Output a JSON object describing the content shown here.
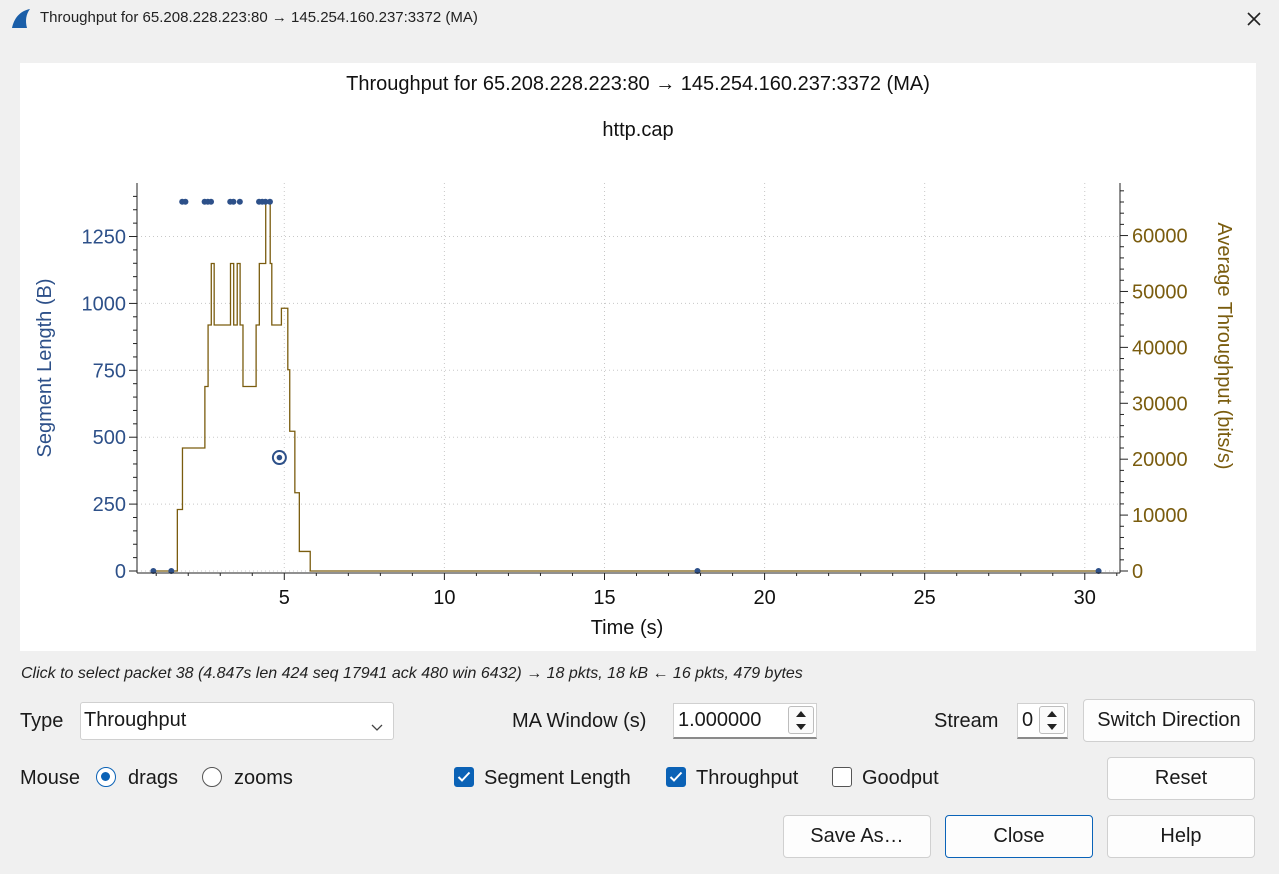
{
  "window": {
    "title": "Throughput for 65.208.228.223:80 → 145.254.160.237:3372 (MA)"
  },
  "graph": {
    "title": "Throughput for 65.208.228.223:80 → 145.254.160.237:3372 (MA)",
    "subtitle": "http.cap",
    "xlabel": "Time (s)",
    "ylabel_left": "Segment Length (B)",
    "ylabel_right": "Average Throughput (bits/s)",
    "x_ticks": [
      "5",
      "10",
      "15",
      "20",
      "25",
      "30"
    ],
    "y_left_ticks": [
      "0",
      "250",
      "500",
      "750",
      "1000",
      "1250"
    ],
    "y_right_ticks": [
      "0",
      "10000",
      "20000",
      "30000",
      "40000",
      "50000",
      "60000"
    ]
  },
  "chart_data": {
    "type": "line",
    "x_range": [
      0.4,
      31.1
    ],
    "y_left_range": [
      0,
      1450
    ],
    "y_right_range": [
      0,
      69400
    ],
    "grid": true,
    "series": [
      {
        "name": "Segment Length",
        "kind": "scatter",
        "axis": "left",
        "color": "#2d5089",
        "x": [
          0.911,
          1.472,
          1.812,
          1.912,
          2.512,
          2.612,
          2.712,
          3.312,
          3.412,
          3.612,
          4.212,
          4.312,
          4.412,
          4.552,
          17.904,
          30.43
        ],
        "y": [
          0,
          0,
          1380,
          1380,
          1380,
          1380,
          1380,
          1380,
          1380,
          1380,
          1380,
          1380,
          1380,
          1380,
          0,
          0
        ]
      },
      {
        "name": "Selected packet",
        "kind": "marker",
        "axis": "left",
        "color": "#2d5089",
        "x": [
          4.847
        ],
        "y": [
          424
        ]
      },
      {
        "name": "Throughput",
        "kind": "step",
        "axis": "right",
        "color": "#7a5c0e",
        "x": [
          0.911,
          1.65,
          1.66,
          1.81,
          1.82,
          1.91,
          1.92,
          2.51,
          2.52,
          2.61,
          2.62,
          2.71,
          2.72,
          2.8,
          2.81,
          2.9,
          2.91,
          3.31,
          3.32,
          3.41,
          3.42,
          3.52,
          3.53,
          3.61,
          3.62,
          3.7,
          3.71,
          3.9,
          3.91,
          4.11,
          4.12,
          4.21,
          4.22,
          4.31,
          4.32,
          4.41,
          4.42,
          4.55,
          4.56,
          4.6,
          4.61,
          4.9,
          4.91,
          5.1,
          5.11,
          5.16,
          5.17,
          5.32,
          5.33,
          5.46,
          5.47,
          5.56,
          5.57,
          5.8,
          5.81,
          30.43
        ],
        "y": [
          0,
          0,
          11000,
          11000,
          22000,
          22000,
          22000,
          22000,
          33000,
          33000,
          44000,
          44000,
          55000,
          55000,
          44000,
          44000,
          44000,
          44000,
          55000,
          55000,
          44000,
          44000,
          55000,
          55000,
          44000,
          44000,
          33000,
          33000,
          33000,
          33000,
          44000,
          44000,
          55000,
          55000,
          55000,
          55000,
          66000,
          66000,
          55000,
          55000,
          44000,
          44000,
          47000,
          47000,
          36000,
          36000,
          25000,
          25000,
          14000,
          14000,
          3500,
          3500,
          3500,
          3500,
          0,
          0
        ]
      }
    ]
  },
  "status": {
    "hint": "Click to select packet 38 (4.847s len 424 seq 17941 ack 480 win 6432) → 18 pkts, 18 kB ← 16 pkts, 479 bytes"
  },
  "controls": {
    "type_label": "Type",
    "type_value": "Throughput",
    "ma_label": "MA Window (s)",
    "ma_value": "1.000000",
    "stream_label": "Stream",
    "stream_value": "0",
    "switch_label": "Switch Direction",
    "mouse_label": "Mouse",
    "drags_label": "drags",
    "zooms_label": "zooms",
    "seglen_label": "Segment Length",
    "throughput_label": "Throughput",
    "goodput_label": "Goodput",
    "reset_label": "Reset",
    "saveas_label": "Save As…",
    "close_label": "Close",
    "help_label": "Help"
  }
}
